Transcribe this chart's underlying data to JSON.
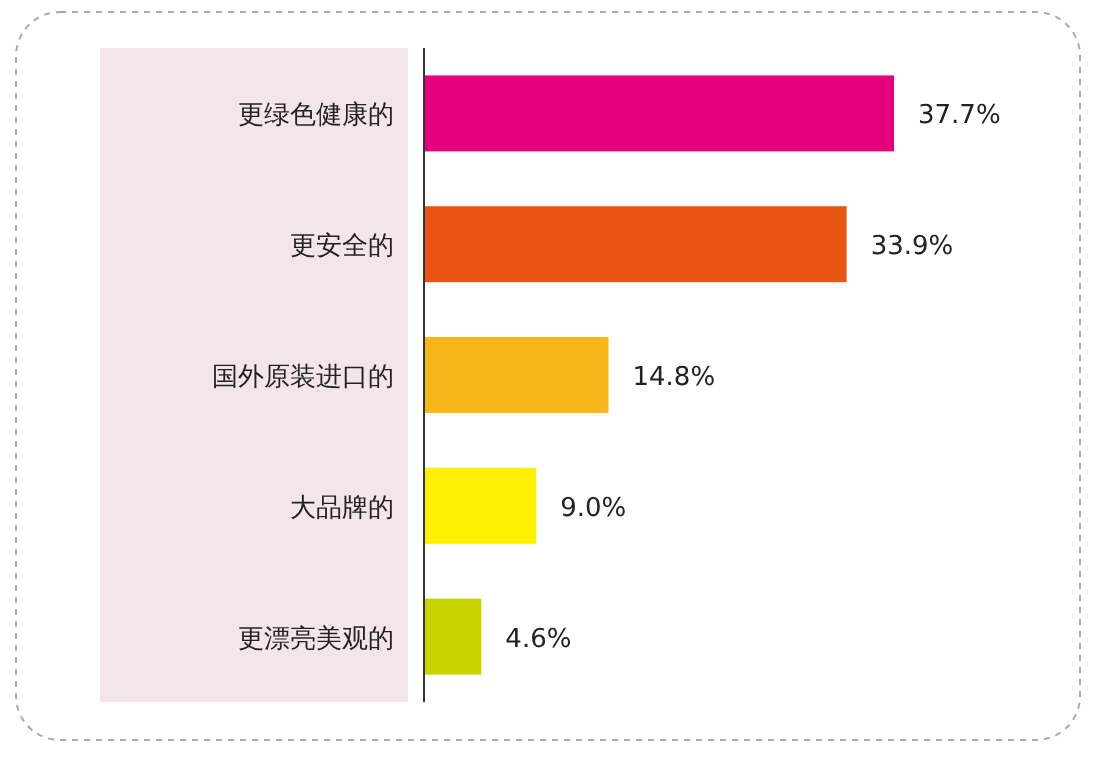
{
  "chart_data": {
    "type": "bar",
    "orientation": "horizontal",
    "categories": [
      "更绿色健康的",
      "更安全的",
      "国外原装进口的",
      "大品牌的",
      "更漂亮美观的"
    ],
    "values": [
      37.7,
      33.9,
      14.8,
      9.0,
      4.6
    ],
    "colors": [
      "#e4007f",
      "#e95513",
      "#f8b61a",
      "#fff000",
      "#c9d400"
    ],
    "value_labels": [
      "37.7%",
      "33.9%",
      "14.8%",
      "9.0%",
      "4.6%"
    ]
  }
}
